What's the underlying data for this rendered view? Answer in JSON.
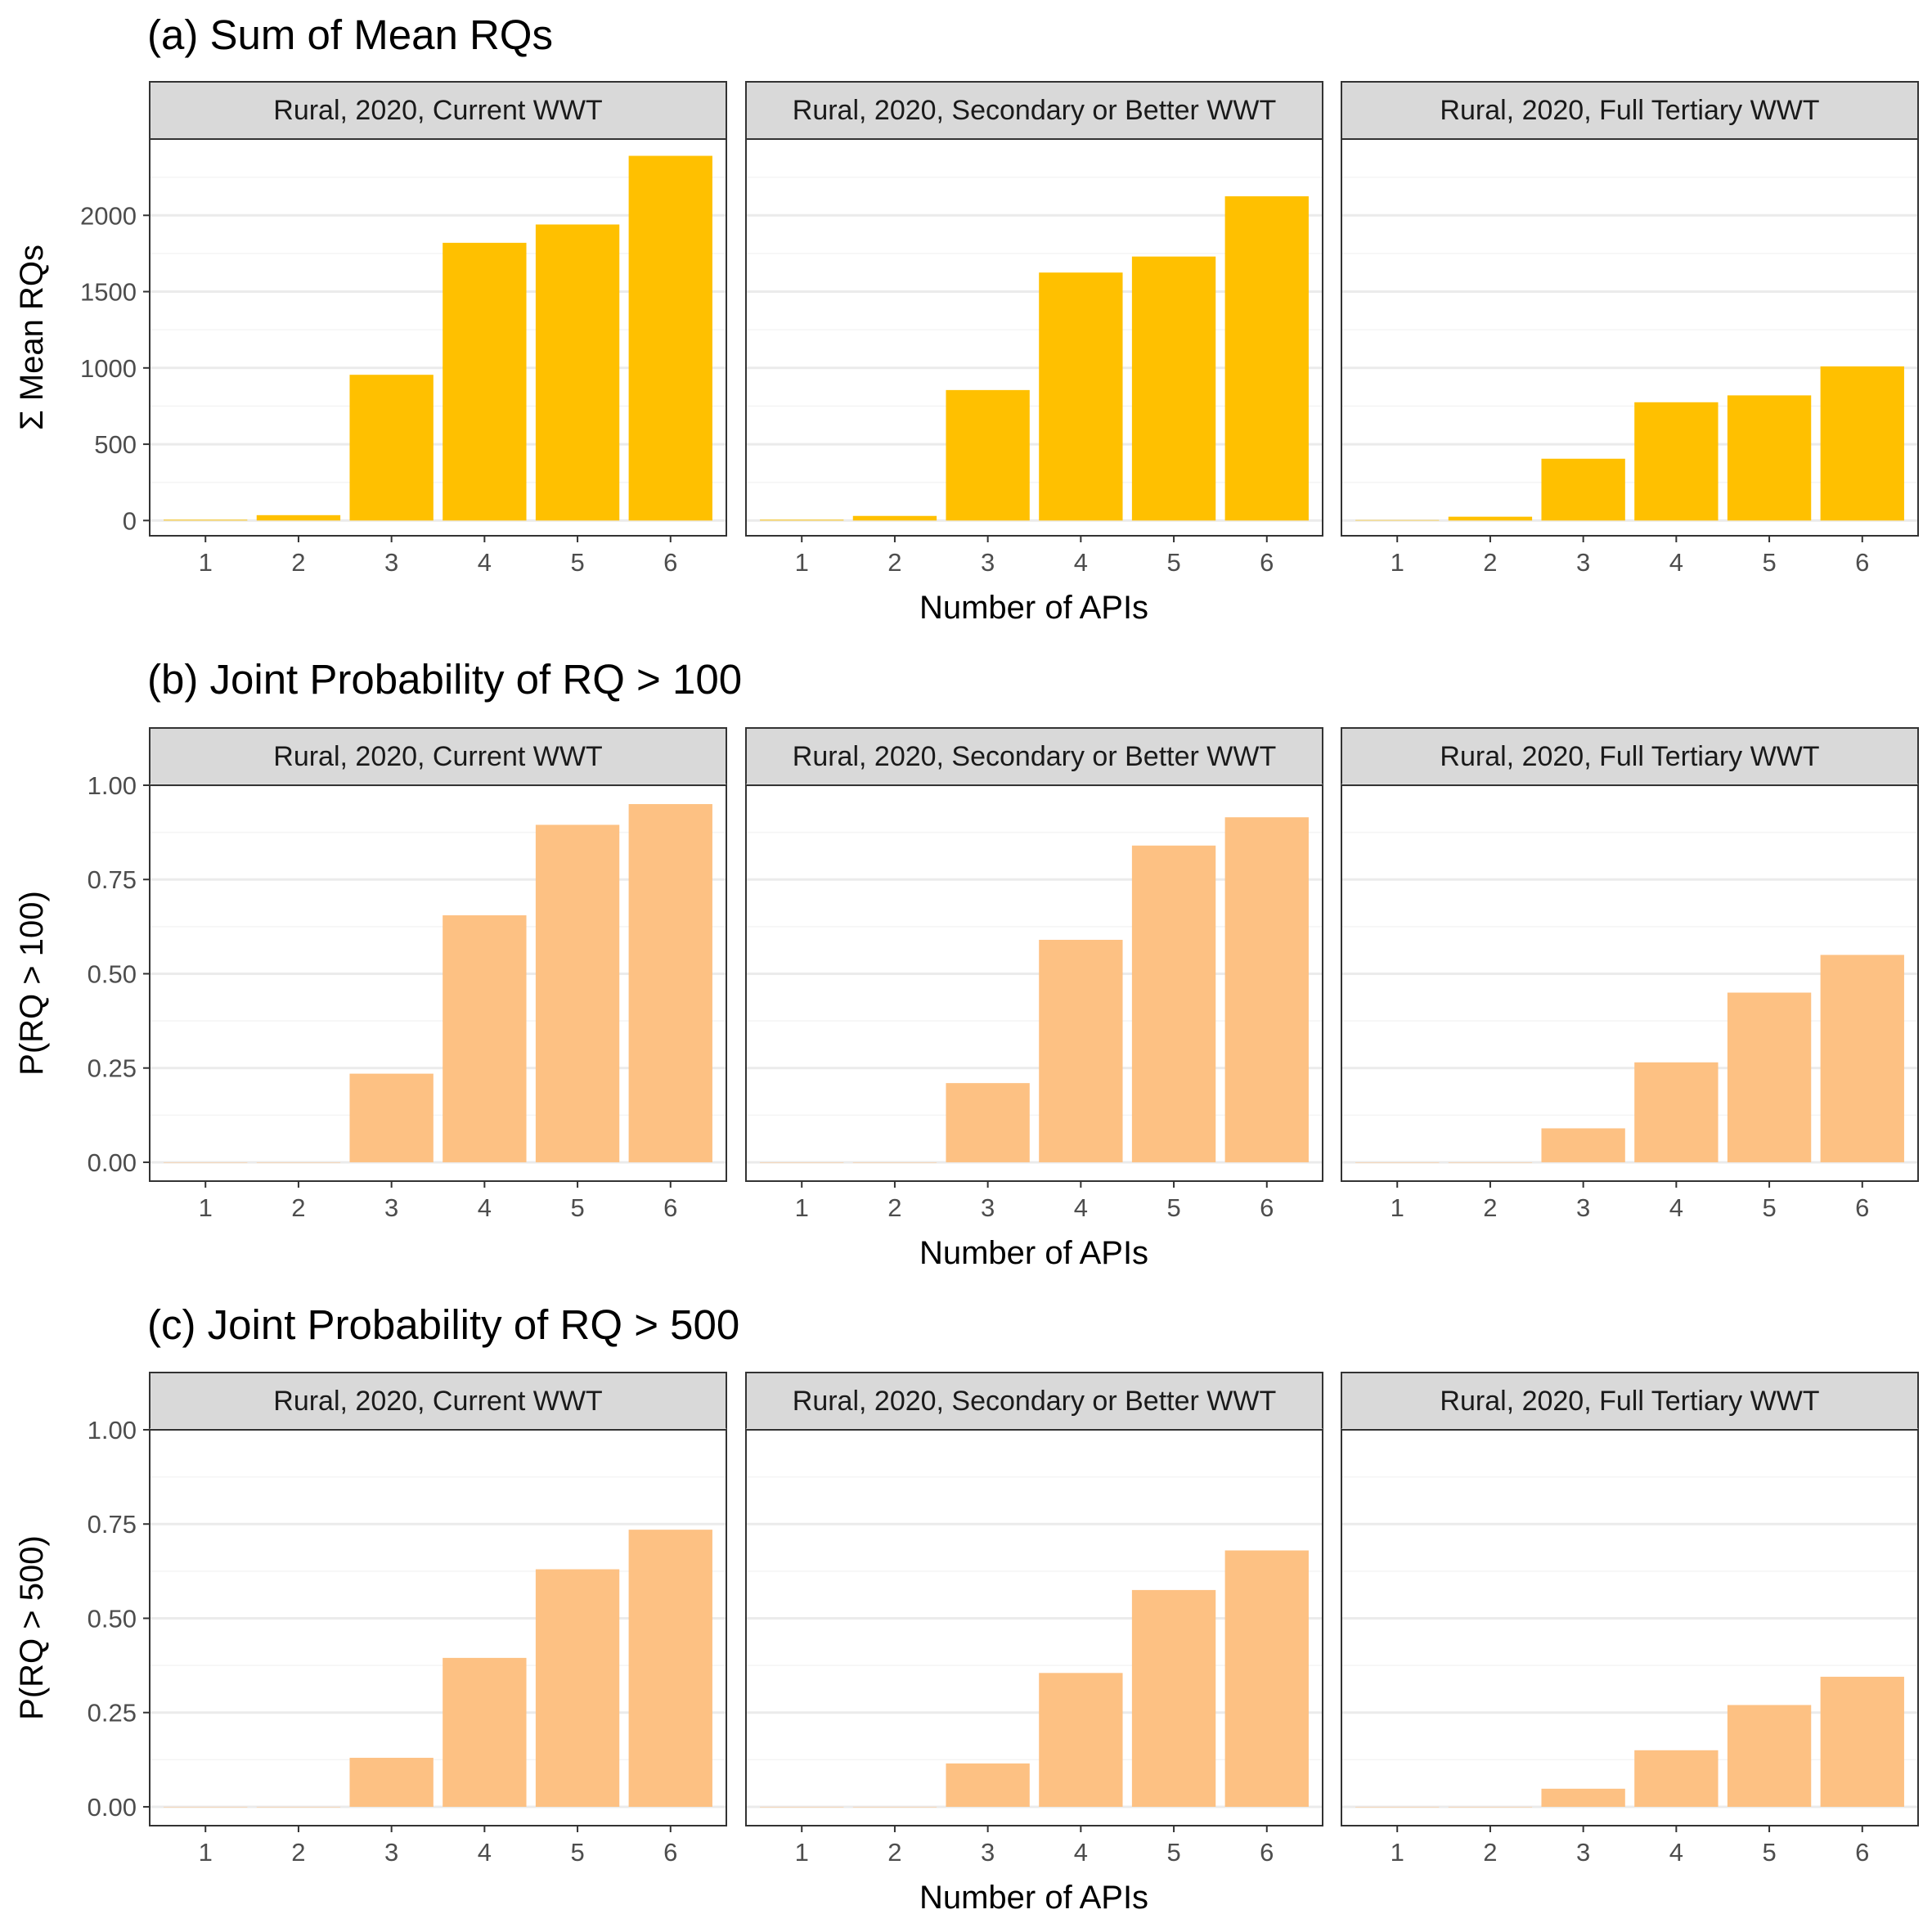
{
  "figure": {
    "panel_labels": [
      "Rural, 2020, Current WWT",
      "Rural, 2020, Secondary or Better WWT",
      "Rural, 2020, Full Tertiary WWT"
    ],
    "xlabel": "Number of APIs",
    "x_categories": [
      "1",
      "2",
      "3",
      "4",
      "5",
      "6"
    ]
  },
  "colors": {
    "sum_bar": "#FFC000",
    "prob_bar": "#FDC183",
    "strip_bg": "#D9D9D9",
    "panel_border": "#333333",
    "grid_major": "#EBEBEB",
    "grid_minor": "#F4F4F4"
  },
  "chart_data": [
    {
      "type": "bar",
      "title": "(a) Sum of Mean RQs",
      "ylabel": "Σ Mean RQs",
      "ylim": [
        -100,
        2500
      ],
      "yticks": [
        0,
        500,
        1000,
        1500,
        2000
      ],
      "ytick_labels": [
        "0",
        "500",
        "1000",
        "1500",
        "2000"
      ],
      "categories": [
        "1",
        "2",
        "3",
        "4",
        "5",
        "6"
      ],
      "series": [
        {
          "facet": "Rural, 2020, Current WWT",
          "values": [
            5,
            35,
            955,
            1820,
            1940,
            2390
          ]
        },
        {
          "facet": "Rural, 2020, Secondary or Better WWT",
          "values": [
            5,
            30,
            855,
            1625,
            1730,
            2125
          ]
        },
        {
          "facet": "Rural, 2020, Full Tertiary WWT",
          "values": [
            3,
            25,
            405,
            775,
            820,
            1010
          ]
        }
      ]
    },
    {
      "type": "bar",
      "title": "(b) Joint Probability of RQ > 100",
      "ylabel": "P(RQ > 100)",
      "ylim": [
        -0.05,
        1.0
      ],
      "yticks": [
        0,
        0.25,
        0.5,
        0.75,
        1.0
      ],
      "ytick_labels": [
        "0.00",
        "0.25",
        "0.50",
        "0.75",
        "1.00"
      ],
      "categories": [
        "1",
        "2",
        "3",
        "4",
        "5",
        "6"
      ],
      "series": [
        {
          "facet": "Rural, 2020, Current WWT",
          "values": [
            0,
            0,
            0.235,
            0.655,
            0.895,
            0.95
          ]
        },
        {
          "facet": "Rural, 2020, Secondary or Better WWT",
          "values": [
            0,
            0,
            0.21,
            0.59,
            0.84,
            0.915
          ]
        },
        {
          "facet": "Rural, 2020, Full Tertiary WWT",
          "values": [
            0,
            0,
            0.09,
            0.265,
            0.45,
            0.55
          ]
        }
      ]
    },
    {
      "type": "bar",
      "title": "(c) Joint Probability of RQ > 500",
      "ylabel": "P(RQ > 500)",
      "ylim": [
        -0.05,
        1.0
      ],
      "yticks": [
        0,
        0.25,
        0.5,
        0.75,
        1.0
      ],
      "ytick_labels": [
        "0.00",
        "0.25",
        "0.50",
        "0.75",
        "1.00"
      ],
      "categories": [
        "1",
        "2",
        "3",
        "4",
        "5",
        "6"
      ],
      "series": [
        {
          "facet": "Rural, 2020, Current WWT",
          "values": [
            0,
            0,
            0.13,
            0.395,
            0.63,
            0.735
          ]
        },
        {
          "facet": "Rural, 2020, Secondary or Better WWT",
          "values": [
            0,
            0,
            0.115,
            0.355,
            0.575,
            0.68
          ]
        },
        {
          "facet": "Rural, 2020, Full Tertiary WWT",
          "values": [
            0,
            0,
            0.048,
            0.15,
            0.27,
            0.345
          ]
        }
      ]
    }
  ]
}
